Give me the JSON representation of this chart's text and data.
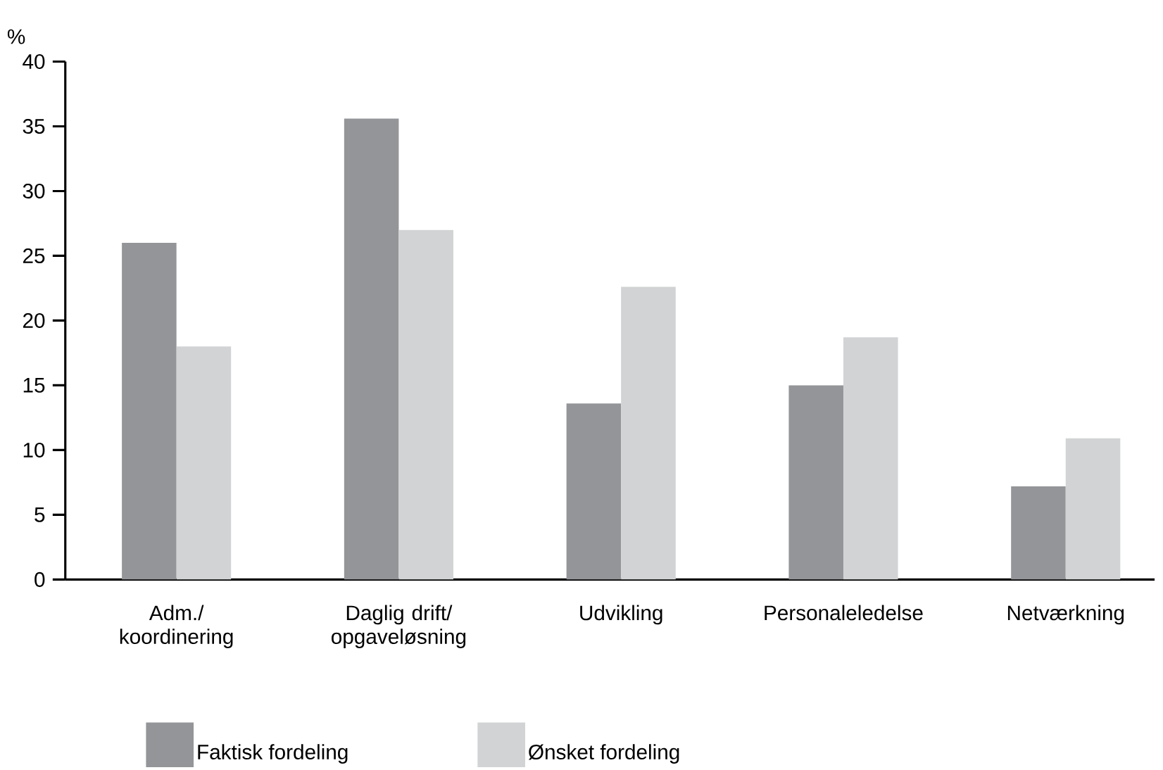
{
  "chart_data": {
    "type": "bar",
    "ylabel": "%",
    "categories": [
      "Adm./ koordinering",
      "Daglig drift/ opgaveløsning",
      "Udvikling",
      "Personaleledelse",
      "Netværkning"
    ],
    "series": [
      {
        "name": "Faktisk fordeling",
        "color": "#939598",
        "values": [
          26,
          35.6,
          13.6,
          15,
          7.2
        ]
      },
      {
        "name": "Ønsket fordeling",
        "color": "#d1d3d4",
        "values": [
          18,
          27,
          22.6,
          18.7,
          10.9
        ]
      }
    ],
    "ylim": [
      0,
      40
    ],
    "yticks": [
      0,
      5,
      10,
      15,
      20,
      25,
      30,
      35,
      40
    ],
    "grid": false,
    "legend": "bottom"
  }
}
